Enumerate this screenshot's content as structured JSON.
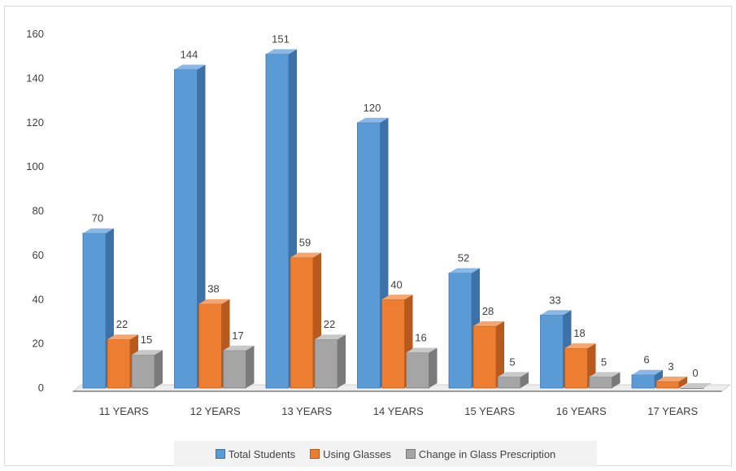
{
  "colors": {
    "total": "#5b9bd5",
    "glasses": "#ed7d31",
    "change": "#a5a5a5"
  },
  "chart_data": {
    "type": "bar",
    "title": "",
    "xlabel": "",
    "ylabel": "",
    "ylim": [
      0,
      160
    ],
    "yticks": [
      "0",
      "20",
      "40",
      "60",
      "80",
      "100",
      "120",
      "140",
      "160"
    ],
    "categories": [
      "11 YEARS",
      "12 YEARS",
      "13 YEARS",
      "14 YEARS",
      "15 YEARS",
      "16 YEARS",
      "17 YEARS"
    ],
    "series": [
      {
        "name": "Total Students",
        "values": [
          70,
          144,
          151,
          120,
          52,
          33,
          6
        ]
      },
      {
        "name": "Using Glasses",
        "values": [
          22,
          38,
          59,
          40,
          28,
          18,
          3
        ]
      },
      {
        "name": "Change in Glass Prescription",
        "values": [
          15,
          17,
          22,
          16,
          5,
          5,
          0
        ]
      }
    ],
    "legend_position": "bottom",
    "grid": false,
    "style": "3d-clustered-column"
  }
}
